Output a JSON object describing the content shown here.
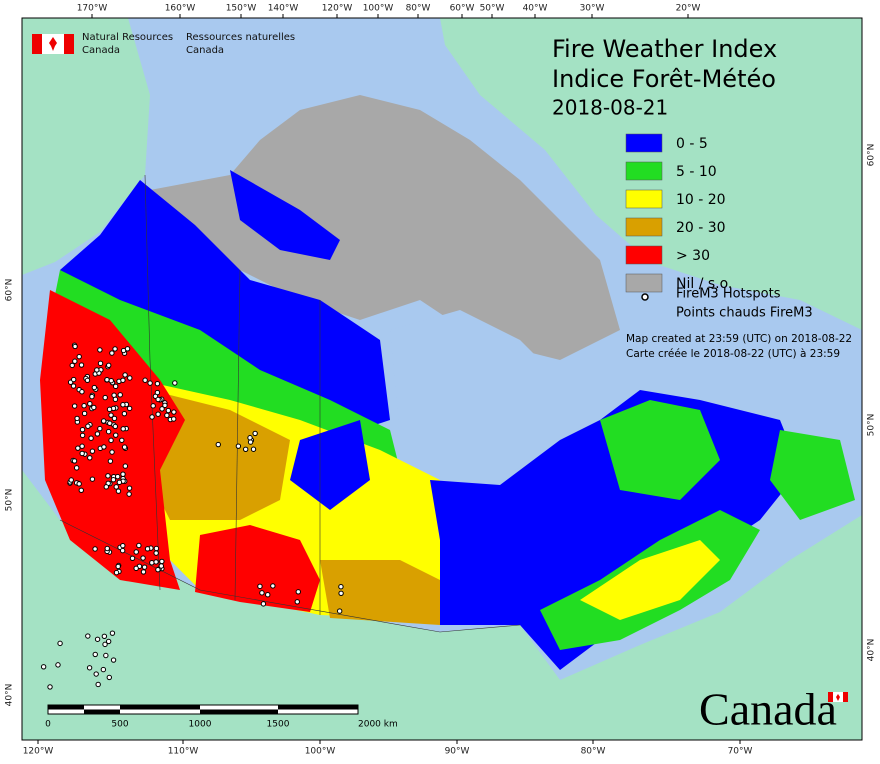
{
  "agency": {
    "en": [
      "Natural Resources",
      "Canada"
    ],
    "fr": [
      "Ressources naturelles",
      "Canada"
    ]
  },
  "title": {
    "line1": "Fire Weather Index",
    "line2": "Indice Forêt-Météo",
    "date": "2018-08-21"
  },
  "legend": [
    {
      "label": "0 - 5",
      "color": "#0000ff"
    },
    {
      "label": "5 - 10",
      "color": "#22dd22"
    },
    {
      "label": "10 - 20",
      "color": "#ffff00"
    },
    {
      "label": "20 - 30",
      "color": "#d9a000"
    },
    {
      "label": "> 30",
      "color": "#ff0000"
    },
    {
      "label": "Nil / s.o.",
      "color": "#a8a8a8"
    }
  ],
  "hotspots_label": [
    "FireM3 Hotspots",
    "Points chauds FireM3"
  ],
  "created": [
    "Map created at 23:59 (UTC) on 2018-08-22",
    "Carte créée le 2018-08-22 (UTC) à 23:59"
  ],
  "scale": [
    "0",
    "500",
    "1000",
    "1500",
    "2000 km"
  ],
  "graticule": {
    "top": [
      "170°W",
      "160°W",
      "150°W",
      "140°W",
      "120°W",
      "100°W",
      "80°W",
      "60°W",
      "50°W",
      "40°W",
      "30°W",
      "20°W"
    ],
    "bottom": [
      "120°W",
      "110°W",
      "100°W",
      "90°W",
      "80°W",
      "70°W"
    ],
    "left": [
      "60°N",
      "50°N",
      "40°N"
    ],
    "right": [
      "60°N",
      "50°N",
      "40°N"
    ]
  },
  "wordmark": "Canada"
}
